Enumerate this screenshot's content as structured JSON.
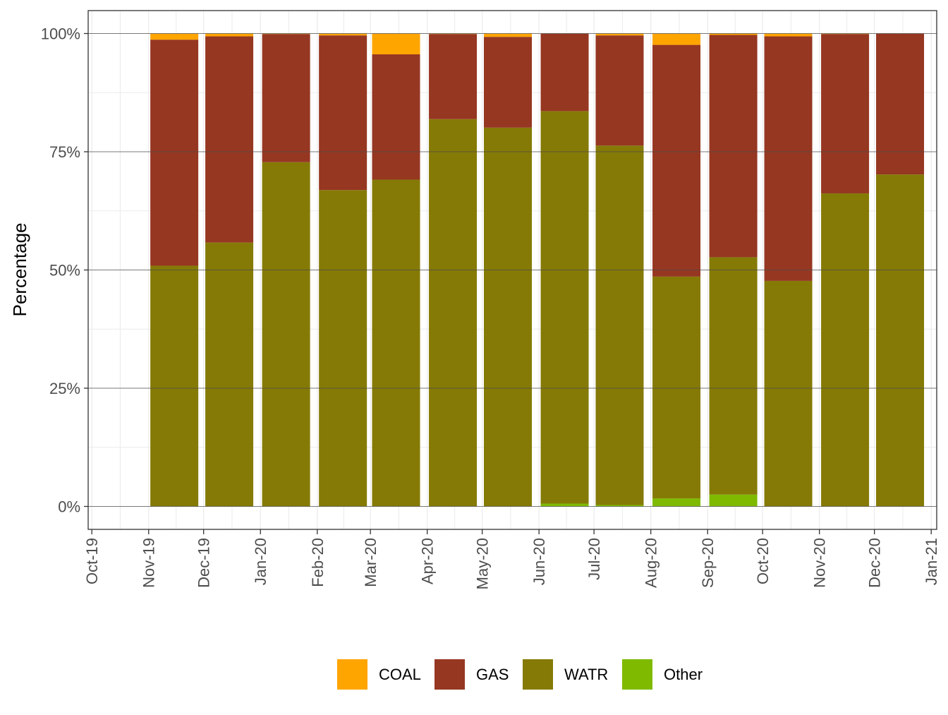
{
  "chart_data": {
    "type": "bar",
    "stacked": true,
    "percent": true,
    "ylabel": "Percentage",
    "xlabel": "",
    "ylim": [
      0,
      100
    ],
    "yticks": [
      "0%",
      "25%",
      "50%",
      "75%",
      "100%"
    ],
    "x_axis_labels": [
      "Oct-19",
      "Nov-19",
      "Dec-19",
      "Jan-20",
      "Feb-20",
      "Mar-20",
      "Apr-20",
      "May-20",
      "Jun-20",
      "Jul-20",
      "Aug-20",
      "Sep-20",
      "Oct-20",
      "Nov-20",
      "Dec-20",
      "Jan-21"
    ],
    "x_axis_range": [
      "2019-09-29",
      "2021-01-04"
    ],
    "bar_dates": [
      "2019-11-15",
      "2019-12-15",
      "2020-01-15",
      "2020-02-15",
      "2020-03-15",
      "2020-04-15",
      "2020-05-15",
      "2020-06-15",
      "2020-07-15",
      "2020-08-15",
      "2020-09-15",
      "2020-10-15",
      "2020-11-15",
      "2020-12-15"
    ],
    "series": [
      {
        "name": "Other",
        "color": "#7fba00",
        "values": [
          0,
          0,
          0,
          0,
          0,
          0,
          0,
          0.6,
          0.3,
          1.7,
          2.5,
          0,
          0,
          0
        ]
      },
      {
        "name": "WATR",
        "color": "#857a06",
        "values": [
          50.9,
          55.8,
          72.8,
          66.9,
          69.1,
          81.9,
          80.1,
          83.0,
          76.0,
          46.9,
          50.2,
          47.7,
          66.2,
          70.2
        ]
      },
      {
        "name": "GAS",
        "color": "#963722",
        "values": [
          47.8,
          43.6,
          27.1,
          32.7,
          26.5,
          18.0,
          19.2,
          16.4,
          23.3,
          49.0,
          47.0,
          51.7,
          33.7,
          29.8
        ]
      },
      {
        "name": "COAL",
        "color": "#ffa500",
        "values": [
          1.3,
          0.6,
          0.1,
          0.4,
          4.4,
          0.1,
          0.7,
          0,
          0.4,
          2.4,
          0.3,
          0.6,
          0.1,
          0
        ]
      }
    ],
    "legend_order": [
      "COAL",
      "GAS",
      "WATR",
      "Other"
    ],
    "legend_position": "bottom",
    "grid": true
  }
}
